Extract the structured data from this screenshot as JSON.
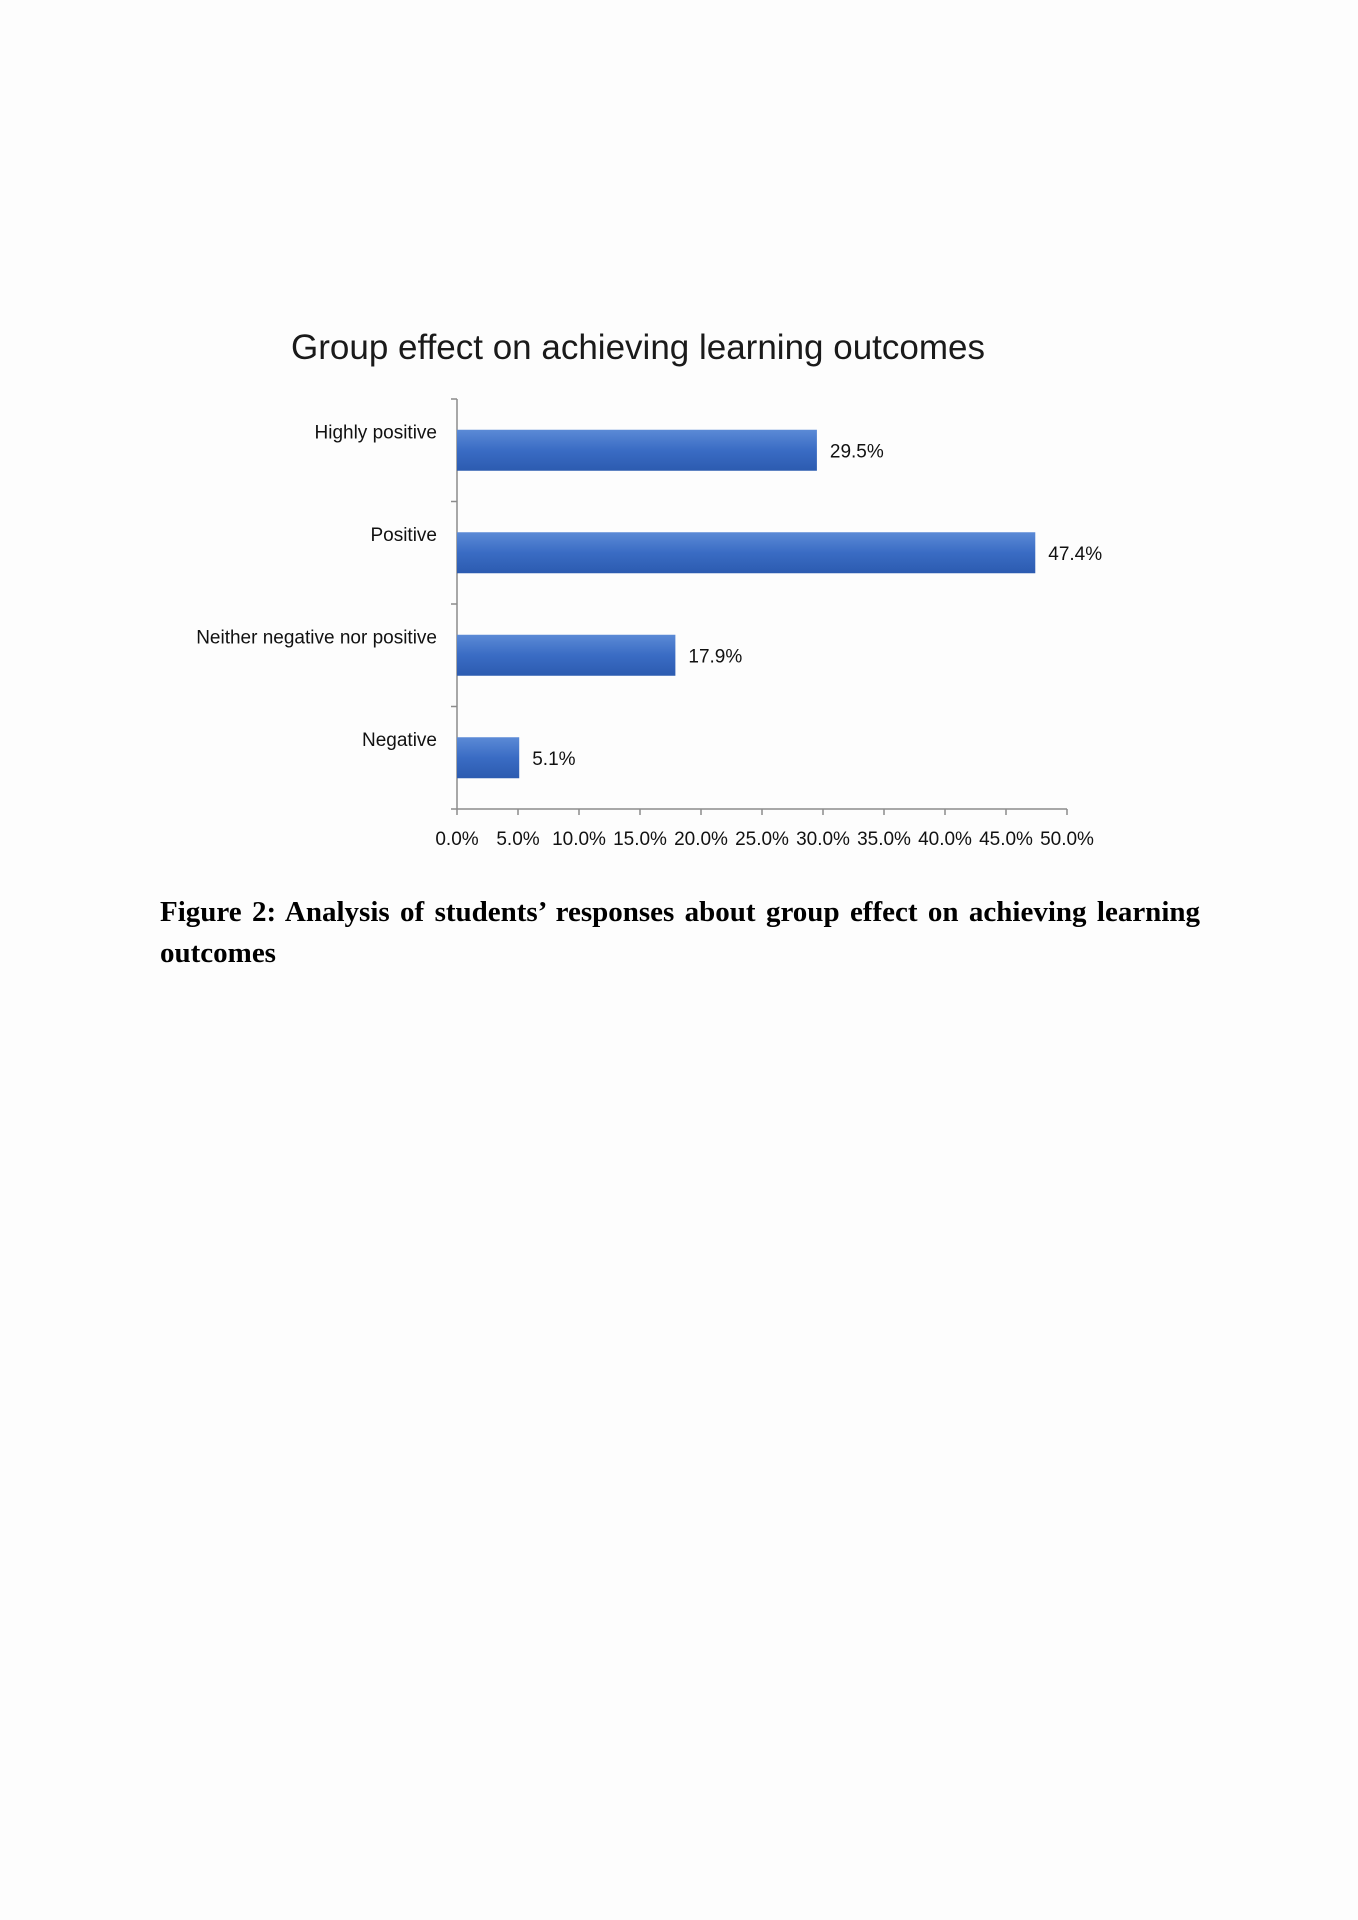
{
  "chart_data": {
    "type": "bar",
    "orientation": "horizontal",
    "title": "Group effect on achieving learning outcomes",
    "xlabel": "",
    "ylabel": "",
    "categories": [
      "Highly positive",
      "Positive",
      "Neither negative nor positive",
      "Negative"
    ],
    "values": [
      29.5,
      47.4,
      17.9,
      5.1
    ],
    "data_labels": [
      "29.5%",
      "47.4%",
      "17.9%",
      "5.1%"
    ],
    "xlim": [
      0,
      50
    ],
    "xticks": [
      0,
      5,
      10,
      15,
      20,
      25,
      30,
      35,
      40,
      45,
      50
    ],
    "xtick_labels": [
      "0.0%",
      "5.0%",
      "10.0%",
      "15.0%",
      "20.0%",
      "25.0%",
      "30.0%",
      "35.0%",
      "40.0%",
      "45.0%",
      "50.0%"
    ],
    "grid": false,
    "legend": "none",
    "bar_color": "#3a6cc4"
  },
  "caption": "Figure 2: Analysis of students’ responses about group effect on achieving learning outcomes"
}
